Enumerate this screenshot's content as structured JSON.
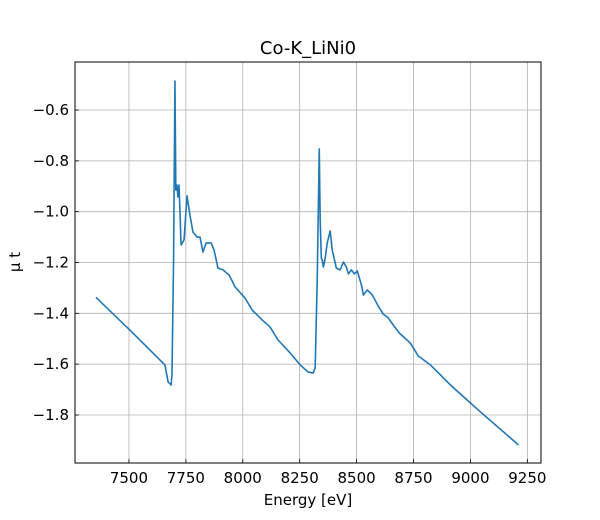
{
  "chart_data": {
    "type": "line",
    "title": "Co-K_LiNi0",
    "x_label": "Energy [eV]",
    "y_label": "μ t",
    "x": [
      7355,
      7504,
      7658,
      7672,
      7685,
      7689,
      7696,
      7702,
      7706,
      7711,
      7715,
      7720,
      7729,
      7742,
      7755,
      7768,
      7781,
      7799,
      7812,
      7825,
      7839,
      7861,
      7874,
      7891,
      7913,
      7940,
      7966,
      8010,
      8041,
      8085,
      8120,
      8155,
      8208,
      8252,
      8287,
      8309,
      8318,
      8327,
      8336,
      8340,
      8345,
      8349,
      8354,
      8362,
      8371,
      8384,
      8393,
      8411,
      8428,
      8442,
      8455,
      8464,
      8477,
      8490,
      8503,
      8521,
      8530,
      8547,
      8569,
      8595,
      8617,
      8639,
      8661,
      8687,
      8736,
      8771,
      8824,
      8868,
      8912,
      9044,
      9211
    ],
    "series": [
      {
        "color": "#1f77b4",
        "values": [
          -1.337,
          -1.466,
          -1.603,
          -1.67,
          -1.682,
          -1.642,
          -1.19,
          -0.486,
          -0.915,
          -0.895,
          -0.942,
          -0.895,
          -1.131,
          -1.111,
          -0.938,
          -1.013,
          -1.08,
          -1.1,
          -1.1,
          -1.159,
          -1.123,
          -1.123,
          -1.151,
          -1.222,
          -1.229,
          -1.249,
          -1.296,
          -1.34,
          -1.387,
          -1.426,
          -1.454,
          -1.505,
          -1.556,
          -1.603,
          -1.631,
          -1.635,
          -1.615,
          -1.269,
          -0.753,
          -1.033,
          -1.182,
          -1.19,
          -1.218,
          -1.182,
          -1.123,
          -1.076,
          -1.151,
          -1.222,
          -1.229,
          -1.198,
          -1.218,
          -1.245,
          -1.229,
          -1.245,
          -1.233,
          -1.288,
          -1.328,
          -1.308,
          -1.328,
          -1.371,
          -1.403,
          -1.418,
          -1.446,
          -1.477,
          -1.517,
          -1.568,
          -1.603,
          -1.642,
          -1.682,
          -1.788,
          -1.918
        ]
      }
    ],
    "xlim": [
      7263,
      9310
    ],
    "xticks": [
      7500,
      7750,
      8000,
      8250,
      8500,
      8750,
      9000,
      9250
    ],
    "ylim": [
      -1.989,
      -0.411
    ],
    "yticks": [
      {
        "value": -1.8,
        "label": "−1.8"
      },
      {
        "value": -1.6,
        "label": "−1.6"
      },
      {
        "value": -1.4,
        "label": "−1.4"
      },
      {
        "value": -1.2,
        "label": "−1.2"
      },
      {
        "value": -1.0,
        "label": "−1.0"
      },
      {
        "value": -0.8,
        "label": "−0.8"
      },
      {
        "value": -0.6,
        "label": "−0.6"
      }
    ],
    "grid": true
  }
}
